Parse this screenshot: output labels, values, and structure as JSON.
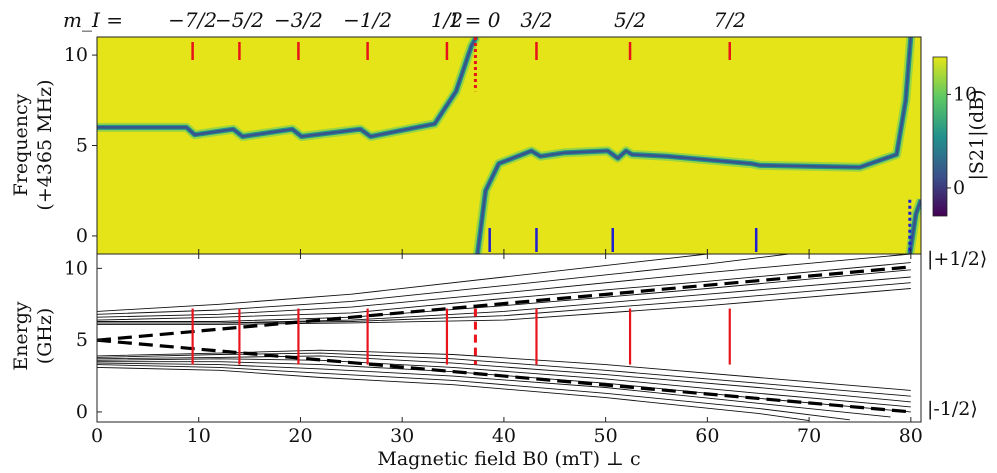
{
  "chart_data": [
    {
      "type": "heatmap",
      "title": "",
      "ylabel_line1": "Frequency",
      "ylabel_line2": "(+4365 MHz)",
      "xlabel": "",
      "xlim": [
        0,
        81
      ],
      "ylim": [
        -1,
        11
      ],
      "yticks": [
        "0",
        "5",
        "10"
      ],
      "colorbar": {
        "label": "|S21|(dB)",
        "ticks": [
          "0",
          "10"
        ],
        "range": [
          -3,
          14
        ],
        "colormap": "viridis"
      },
      "mI_prefix": "m_I =",
      "mI_labels": [
        {
          "text": "−7/2",
          "x": 9.4
        },
        {
          "text": "−5/2",
          "x": 14.0
        },
        {
          "text": "−3/2",
          "x": 19.8
        },
        {
          "text": "−1/2",
          "x": 26.6
        },
        {
          "text": "1/2",
          "x": 34.4
        },
        {
          "text": "I = 0",
          "x": 37.2
        },
        {
          "text": "3/2",
          "x": 43.2
        },
        {
          "text": "5/2",
          "x": 52.4
        },
        {
          "text": "7/2",
          "x": 62.2
        }
      ],
      "top_markers": [
        9.4,
        14.0,
        19.8,
        26.6,
        34.4,
        43.2,
        52.4,
        62.2
      ],
      "top_marker_color": "#e8141a",
      "I0_marker": {
        "x": 37.2,
        "from": 8.0,
        "to": 11.0
      },
      "bottom_markers": [
        38.6,
        43.2,
        50.7,
        64.8
      ],
      "bottom_marker_color": "#1f1fd2",
      "edge_marker": {
        "x": 79.9,
        "from": -1.0,
        "to": 2.0
      },
      "resonance": [
        [
          0,
          6.0
        ],
        [
          8.8,
          6.0
        ],
        [
          9.6,
          5.6
        ],
        [
          13.4,
          5.9
        ],
        [
          14.3,
          5.5
        ],
        [
          19.2,
          5.9
        ],
        [
          20.1,
          5.5
        ],
        [
          25.9,
          5.9
        ],
        [
          26.9,
          5.5
        ],
        [
          33.2,
          6.2
        ],
        [
          35.3,
          8.0
        ],
        [
          36.8,
          10.5
        ],
        [
          37.3,
          11.0
        ]
      ],
      "resonance_right": [
        [
          37.4,
          -1.0
        ],
        [
          38.2,
          2.5
        ],
        [
          39.5,
          4.0
        ],
        [
          42.7,
          4.7
        ],
        [
          43.6,
          4.4
        ],
        [
          46,
          4.6
        ],
        [
          50.2,
          4.7
        ],
        [
          51.2,
          4.3
        ],
        [
          52.0,
          4.7
        ],
        [
          52.6,
          4.5
        ],
        [
          56,
          4.4
        ],
        [
          64.3,
          4.0
        ],
        [
          65.2,
          3.9
        ],
        [
          75,
          3.8
        ],
        [
          78.6,
          4.5
        ],
        [
          79.5,
          7.5
        ],
        [
          80.0,
          11.0
        ]
      ],
      "resonance_tail": [
        [
          79.9,
          -1.0
        ],
        [
          80.5,
          1.2
        ],
        [
          81,
          2.0
        ]
      ]
    },
    {
      "type": "line",
      "title": "",
      "xlabel": "Magnetic field B0 (mT) ⊥ c",
      "ylabel_line1": "Energy",
      "ylabel_line2": "(GHz)",
      "xlim": [
        0,
        81
      ],
      "ylim": [
        -0.7,
        11
      ],
      "xticks": [
        "0",
        "10",
        "20",
        "30",
        "40",
        "50",
        "60",
        "70",
        "80"
      ],
      "yticks": [
        "0",
        "5",
        "10"
      ],
      "state_labels": [
        "|+1/2⟩",
        "|-1/2⟩"
      ],
      "series_upper_dashed": [
        [
          0,
          5.0
        ],
        [
          80,
          10.1
        ]
      ],
      "series_lower_dashed": [
        [
          0,
          5.0
        ],
        [
          80,
          0.0
        ]
      ],
      "upper_levels": [
        [
          [
            0,
            7.0
          ],
          [
            12,
            7.5
          ],
          [
            25,
            8.2
          ],
          [
            40,
            9.4
          ],
          [
            60,
            11.0
          ]
        ],
        [
          [
            0,
            6.8
          ],
          [
            12,
            7.1
          ],
          [
            25,
            7.7
          ],
          [
            40,
            8.8
          ],
          [
            60,
            10.3
          ],
          [
            68,
            11.0
          ]
        ],
        [
          [
            0,
            6.6
          ],
          [
            12,
            6.8
          ],
          [
            25,
            7.3
          ],
          [
            40,
            8.3
          ],
          [
            60,
            9.7
          ],
          [
            80,
            11.0
          ]
        ],
        [
          [
            0,
            6.4
          ],
          [
            12,
            6.6
          ],
          [
            25,
            6.9
          ],
          [
            40,
            7.9
          ],
          [
            60,
            9.1
          ],
          [
            80,
            10.4
          ]
        ],
        [
          [
            0,
            6.3
          ],
          [
            12,
            6.3
          ],
          [
            25,
            6.6
          ],
          [
            40,
            7.4
          ],
          [
            60,
            8.6
          ],
          [
            80,
            9.9
          ]
        ],
        [
          [
            0,
            6.2
          ],
          [
            12,
            6.2
          ],
          [
            25,
            6.4
          ],
          [
            40,
            7.0
          ],
          [
            60,
            8.2
          ],
          [
            80,
            9.4
          ]
        ],
        [
          [
            0,
            6.2
          ],
          [
            12,
            6.2
          ],
          [
            25,
            6.3
          ],
          [
            40,
            6.7
          ],
          [
            60,
            7.8
          ],
          [
            80,
            9.0
          ]
        ],
        [
          [
            0,
            6.1
          ],
          [
            12,
            6.1
          ],
          [
            25,
            6.2
          ],
          [
            40,
            6.4
          ],
          [
            60,
            7.4
          ],
          [
            80,
            8.6
          ]
        ]
      ],
      "lower_levels": [
        [
          [
            0,
            3.9
          ],
          [
            12,
            4.1
          ],
          [
            22,
            4.3
          ],
          [
            35,
            4.0
          ],
          [
            50,
            3.3
          ],
          [
            65,
            2.4
          ],
          [
            80,
            1.5
          ]
        ],
        [
          [
            0,
            3.8
          ],
          [
            12,
            4.0
          ],
          [
            22,
            4.1
          ],
          [
            35,
            3.7
          ],
          [
            50,
            2.9
          ],
          [
            65,
            2.0
          ],
          [
            80,
            1.1
          ]
        ],
        [
          [
            0,
            3.7
          ],
          [
            12,
            3.8
          ],
          [
            22,
            3.9
          ],
          [
            35,
            3.4
          ],
          [
            50,
            2.6
          ],
          [
            65,
            1.7
          ],
          [
            80,
            0.7
          ]
        ],
        [
          [
            0,
            3.6
          ],
          [
            12,
            3.7
          ],
          [
            22,
            3.6
          ],
          [
            35,
            3.1
          ],
          [
            50,
            2.3
          ],
          [
            65,
            1.3
          ],
          [
            80,
            0.35
          ]
        ],
        [
          [
            0,
            3.5
          ],
          [
            12,
            3.5
          ],
          [
            22,
            3.3
          ],
          [
            35,
            2.8
          ],
          [
            50,
            2.0
          ],
          [
            65,
            0.95
          ],
          [
            80,
            0.0
          ]
        ],
        [
          [
            0,
            3.4
          ],
          [
            12,
            3.3
          ],
          [
            22,
            3.0
          ],
          [
            35,
            2.5
          ],
          [
            50,
            1.7
          ],
          [
            65,
            0.6
          ],
          [
            78,
            -0.35
          ]
        ],
        [
          [
            0,
            3.3
          ],
          [
            12,
            3.1
          ],
          [
            22,
            2.7
          ],
          [
            35,
            2.2
          ],
          [
            50,
            1.3
          ],
          [
            65,
            0.25
          ],
          [
            74,
            -0.55
          ]
        ],
        [
          [
            0,
            3.1
          ],
          [
            12,
            2.9
          ],
          [
            22,
            2.4
          ],
          [
            35,
            1.9
          ],
          [
            50,
            1.0
          ],
          [
            65,
            -0.1
          ],
          [
            70,
            -0.6
          ]
        ]
      ],
      "transitions": [
        {
          "x": 9.4,
          "from": 3.3,
          "to": 7.2
        },
        {
          "x": 14.0,
          "from": 3.3,
          "to": 7.2
        },
        {
          "x": 19.8,
          "from": 3.3,
          "to": 7.2
        },
        {
          "x": 26.6,
          "from": 3.3,
          "to": 7.2
        },
        {
          "x": 34.4,
          "from": 3.3,
          "to": 7.2
        },
        {
          "x": 43.2,
          "from": 3.3,
          "to": 7.2
        },
        {
          "x": 52.4,
          "from": 3.3,
          "to": 7.2
        },
        {
          "x": 62.2,
          "from": 3.3,
          "to": 7.2
        }
      ],
      "I0_transition": {
        "x": 37.2,
        "from": 3.3,
        "to": 7.2
      },
      "transition_color": "#e8141a"
    }
  ]
}
